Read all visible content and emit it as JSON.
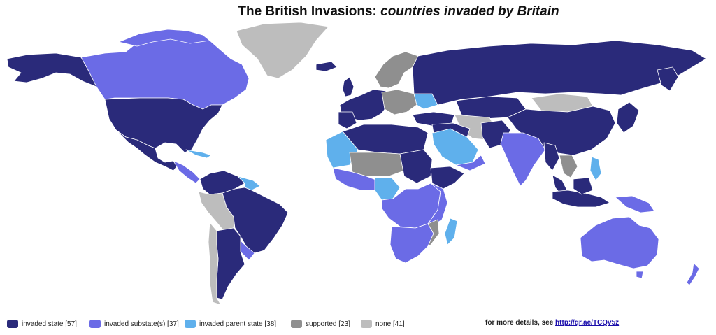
{
  "title": {
    "main": "The British Invasions: ",
    "emphasis": "countries invaded by Britain"
  },
  "colors": {
    "invaded_state": "#2a2a7a",
    "invaded_substate": "#6b6be6",
    "invaded_parent_state": "#5fb0ec",
    "supported": "#8f8f8f",
    "none": "#bdbdbd",
    "ocean": "#ffffff",
    "border": "#ffffff"
  },
  "legend": [
    {
      "label": "invaded state [57]",
      "color": "#2a2a7a"
    },
    {
      "label": "invaded substate(s) [37]",
      "color": "#6b6be6"
    },
    {
      "label": "invaded parent state [38]",
      "color": "#5fb0ec"
    },
    {
      "label": "supported [23]",
      "color": "#8f8f8f"
    },
    {
      "label": "none [41]",
      "color": "#bdbdbd"
    }
  ],
  "details": {
    "prefix": "for more details, see ",
    "link": "http://qr.ae/TCQv5z"
  }
}
